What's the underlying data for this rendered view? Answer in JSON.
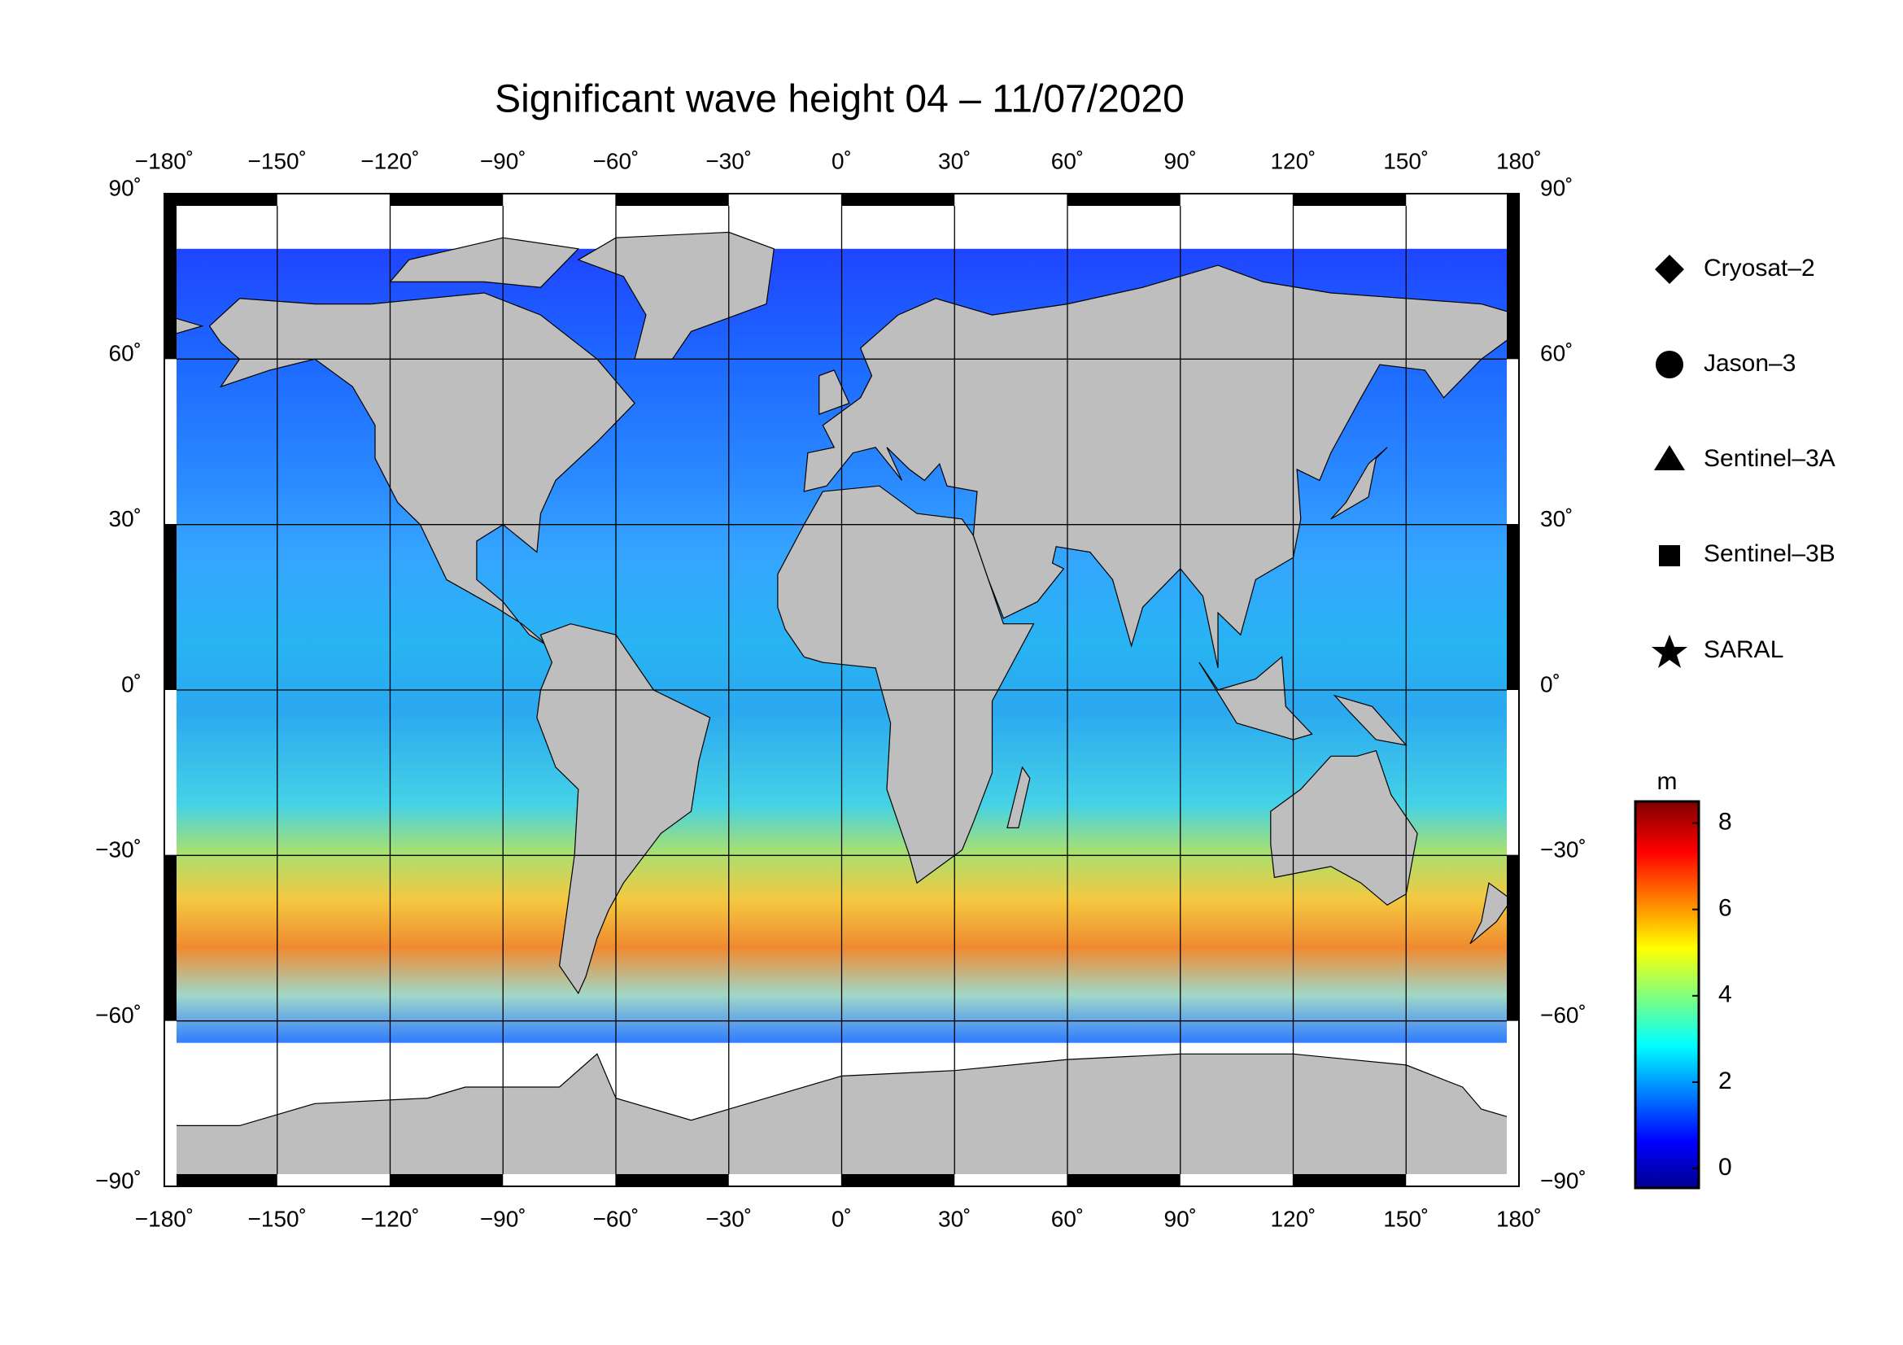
{
  "map": {
    "title": "Significant wave height 04 – 11/07/2020",
    "lon_ticks": [
      {
        "value": -180,
        "label": "−180˚"
      },
      {
        "value": -150,
        "label": "−150˚"
      },
      {
        "value": -120,
        "label": "−120˚"
      },
      {
        "value": -90,
        "label": "−90˚"
      },
      {
        "value": -60,
        "label": "−60˚"
      },
      {
        "value": -30,
        "label": "−30˚"
      },
      {
        "value": 0,
        "label": "0˚"
      },
      {
        "value": 30,
        "label": "30˚"
      },
      {
        "value": 60,
        "label": "60˚"
      },
      {
        "value": 90,
        "label": "90˚"
      },
      {
        "value": 120,
        "label": "120˚"
      },
      {
        "value": 150,
        "label": "150˚"
      },
      {
        "value": 180,
        "label": "180˚"
      }
    ],
    "lat_ticks": [
      {
        "value": 90,
        "label": "90˚"
      },
      {
        "value": 60,
        "label": "60˚"
      },
      {
        "value": 30,
        "label": "30˚"
      },
      {
        "value": 0,
        "label": "0˚"
      },
      {
        "value": -30,
        "label": "−30˚"
      },
      {
        "value": -60,
        "label": "−60˚"
      },
      {
        "value": -90,
        "label": "−90˚"
      }
    ],
    "legend": [
      "Cryosat–2",
      "Jason–3",
      "Sentinel–3A",
      "Sentinel–3B",
      "SARAL"
    ],
    "colorbar": {
      "unit": "m",
      "range": [
        -0.45,
        8.5
      ],
      "ticks": [
        0,
        2,
        4,
        6,
        8
      ]
    }
  }
}
